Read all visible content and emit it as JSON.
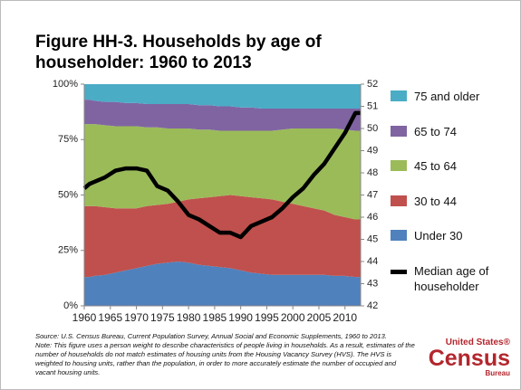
{
  "chart_data": {
    "type": "area",
    "title": "Figure HH-3. Households by age of householder: 1960 to 2013",
    "x": [
      1960,
      1961,
      1962,
      1964,
      1966,
      1968,
      1970,
      1972,
      1974,
      1976,
      1978,
      1980,
      1982,
      1984,
      1986,
      1988,
      1990,
      1992,
      1994,
      1996,
      1998,
      2000,
      2002,
      2004,
      2006,
      2008,
      2010,
      2012,
      2013
    ],
    "xlim": [
      1960,
      2013
    ],
    "xticks": [
      1960,
      1965,
      1970,
      1975,
      1980,
      1985,
      1990,
      1995,
      2000,
      2005,
      2010
    ],
    "ylim": [
      0,
      100
    ],
    "yticks": [
      {
        "value": 0,
        "label": "0%"
      },
      {
        "value": 25,
        "label": "25%"
      },
      {
        "value": 50,
        "label": "50%"
      },
      {
        "value": 75,
        "label": "75%"
      },
      {
        "value": 100,
        "label": "100%"
      }
    ],
    "y2lim": [
      42,
      52
    ],
    "y2ticks": [
      42,
      43,
      44,
      45,
      46,
      47,
      48,
      49,
      50,
      51,
      52
    ],
    "series": [
      {
        "name": "Under 30",
        "color": "#4f81bd",
        "values": [
          13,
          13,
          13.5,
          14,
          15,
          16,
          17,
          18,
          19,
          19.5,
          20,
          19.5,
          18.5,
          18,
          17.5,
          17,
          16,
          15,
          14.5,
          14,
          14,
          14,
          14,
          14,
          14,
          13.5,
          13.5,
          13,
          13
        ]
      },
      {
        "name": "30 to 44",
        "color": "#c0504d",
        "values": [
          32,
          32,
          31.5,
          30.5,
          29,
          28,
          27,
          27,
          26.5,
          26.5,
          27,
          28.5,
          30,
          31,
          32,
          33,
          33.5,
          34,
          34,
          34,
          33,
          32,
          31,
          30,
          29,
          27.5,
          26.5,
          26,
          26
        ]
      },
      {
        "name": "45 to 64",
        "color": "#9bbb59",
        "values": [
          37,
          37,
          37,
          37,
          37,
          37,
          37,
          35.5,
          35,
          34,
          33,
          32,
          31,
          30.5,
          29.5,
          29,
          29.5,
          30,
          30.5,
          31,
          32.5,
          34,
          35,
          36,
          37,
          39,
          39.5,
          40,
          40
        ]
      },
      {
        "name": "65 to 74",
        "color": "#8064a2",
        "values": [
          11,
          11,
          10.5,
          10.5,
          11,
          10.5,
          10.5,
          10.5,
          10.5,
          11,
          11,
          11,
          11,
          11,
          11,
          11,
          10.5,
          10.5,
          10,
          10,
          9.5,
          9,
          9,
          9,
          9,
          9,
          9.5,
          10,
          10
        ]
      },
      {
        "name": "75 and older",
        "color": "#4bacc6",
        "values": [
          7,
          7,
          7.5,
          8,
          8,
          8.5,
          8.5,
          9,
          9,
          9,
          9,
          9,
          9.5,
          9.5,
          10,
          10,
          10.5,
          10.5,
          11,
          11,
          11,
          11,
          11,
          11,
          11,
          11,
          11,
          11,
          11
        ]
      },
      {
        "name": "Median age of householder",
        "color": "#000000",
        "axis": "y2",
        "type": "line",
        "values": [
          47.3,
          47.5,
          47.6,
          47.8,
          48.1,
          48.2,
          48.2,
          48.1,
          47.4,
          47.2,
          46.7,
          46.1,
          45.9,
          45.6,
          45.3,
          45.3,
          45.1,
          45.6,
          45.8,
          46.0,
          46.4,
          46.9,
          47.3,
          47.9,
          48.4,
          49.1,
          49.8,
          50.7,
          50.7
        ]
      }
    ],
    "source": "Source: U.S. Census Bureau, Current Population Survey, Annual Social and Economic Supplements, 1960 to 2013.",
    "note": "Note: This figure uses a person weight to describe characteristics of people living in households. As a result, estimates of the number of households do not match estimates of housing units from the Housing Vacancy Survey (HVS). The HVS is weighted to housing units, rather than the population, in order to more accurately estimate the number of occupied and vacant housing units.",
    "logo": {
      "top": "United States®",
      "main": "Census",
      "bottom": "Bureau"
    }
  }
}
